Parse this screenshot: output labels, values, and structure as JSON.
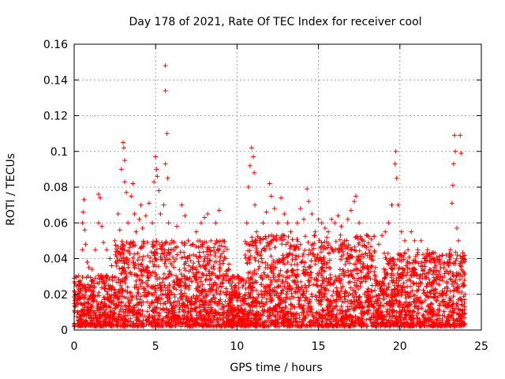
{
  "chart_data": {
    "type": "scatter",
    "title": "Day 178 of 2021, Rate Of TEC Index for receiver cool",
    "xlabel": "GPS time / hours",
    "ylabel": "ROTI / TECUs",
    "xlim": [
      0,
      25
    ],
    "ylim": [
      0,
      0.16
    ],
    "grid": true,
    "marker": "+",
    "color": "#ff0000",
    "x_ticks": [
      0,
      5,
      10,
      15,
      20,
      25
    ],
    "x_tick_labels": [
      "0",
      "5",
      "10",
      "15",
      "20",
      "25"
    ],
    "y_ticks": [
      0,
      0.02,
      0.04,
      0.06,
      0.08,
      0.1,
      0.12,
      0.14,
      0.16
    ],
    "y_tick_labels": [
      "0",
      "0.02",
      "0.04",
      "0.06",
      "0.08",
      "0.1",
      "0.12",
      "0.14",
      "0.16"
    ],
    "series": [
      {
        "name": "ROTI",
        "points": [
          [
            0.0,
            0.029
          ],
          [
            0.1,
            0.03
          ],
          [
            0.3,
            0.018
          ],
          [
            0.5,
            0.045
          ],
          [
            0.5,
            0.06
          ],
          [
            0.55,
            0.066
          ],
          [
            0.6,
            0.073
          ],
          [
            0.65,
            0.056
          ],
          [
            0.7,
            0.048
          ],
          [
            0.8,
            0.038
          ],
          [
            0.9,
            0.035
          ],
          [
            1.1,
            0.034
          ],
          [
            1.3,
            0.045
          ],
          [
            1.5,
            0.06
          ],
          [
            1.5,
            0.076
          ],
          [
            1.6,
            0.074
          ],
          [
            1.7,
            0.058
          ],
          [
            1.8,
            0.049
          ],
          [
            2.0,
            0.045
          ],
          [
            2.2,
            0.04
          ],
          [
            2.3,
            0.036
          ],
          [
            2.5,
            0.05
          ],
          [
            2.7,
            0.065
          ],
          [
            2.8,
            0.056
          ],
          [
            2.9,
            0.09
          ],
          [
            3.0,
            0.105
          ],
          [
            3.05,
            0.102
          ],
          [
            3.1,
            0.095
          ],
          [
            3.1,
            0.083
          ],
          [
            3.2,
            0.077
          ],
          [
            3.3,
            0.06
          ],
          [
            3.5,
            0.075
          ],
          [
            3.6,
            0.082
          ],
          [
            3.7,
            0.065
          ],
          [
            3.8,
            0.055
          ],
          [
            4.0,
            0.062
          ],
          [
            4.1,
            0.07
          ],
          [
            4.2,
            0.057
          ],
          [
            4.4,
            0.064
          ],
          [
            4.6,
            0.071
          ],
          [
            4.8,
            0.06
          ],
          [
            4.9,
            0.083
          ],
          [
            5.0,
            0.097
          ],
          [
            5.05,
            0.09
          ],
          [
            5.1,
            0.086
          ],
          [
            5.2,
            0.078
          ],
          [
            5.3,
            0.065
          ],
          [
            5.5,
            0.07
          ],
          [
            5.6,
            0.093
          ],
          [
            5.6,
            0.148
          ],
          [
            5.6,
            0.134
          ],
          [
            5.7,
            0.11
          ],
          [
            5.75,
            0.085
          ],
          [
            5.8,
            0.06
          ],
          [
            6.0,
            0.05
          ],
          [
            6.3,
            0.058
          ],
          [
            6.6,
            0.07
          ],
          [
            6.8,
            0.064
          ],
          [
            7.0,
            0.05
          ],
          [
            7.3,
            0.048
          ],
          [
            7.5,
            0.055
          ],
          [
            7.8,
            0.06
          ],
          [
            8.0,
            0.063
          ],
          [
            8.2,
            0.065
          ],
          [
            8.4,
            0.05
          ],
          [
            8.7,
            0.06
          ],
          [
            8.9,
            0.067
          ],
          [
            9.1,
            0.05
          ],
          [
            9.3,
            0.04
          ],
          [
            9.5,
            0.034
          ],
          [
            9.7,
            0.03
          ],
          [
            9.9,
            0.025
          ],
          [
            10.1,
            0.02
          ],
          [
            10.3,
            0.028
          ],
          [
            10.5,
            0.042
          ],
          [
            10.6,
            0.06
          ],
          [
            10.7,
            0.08
          ],
          [
            10.8,
            0.092
          ],
          [
            10.9,
            0.102
          ],
          [
            11.0,
            0.097
          ],
          [
            11.05,
            0.088
          ],
          [
            11.1,
            0.07
          ],
          [
            11.2,
            0.055
          ],
          [
            11.4,
            0.05
          ],
          [
            11.6,
            0.06
          ],
          [
            11.8,
            0.066
          ],
          [
            12.0,
            0.082
          ],
          [
            12.1,
            0.075
          ],
          [
            12.3,
            0.068
          ],
          [
            12.5,
            0.06
          ],
          [
            12.7,
            0.074
          ],
          [
            12.9,
            0.065
          ],
          [
            13.1,
            0.06
          ],
          [
            13.3,
            0.055
          ],
          [
            13.5,
            0.047
          ],
          [
            13.7,
            0.06
          ],
          [
            13.9,
            0.068
          ],
          [
            14.1,
            0.062
          ],
          [
            14.3,
            0.079
          ],
          [
            14.4,
            0.072
          ],
          [
            14.6,
            0.065
          ],
          [
            14.8,
            0.055
          ],
          [
            15.0,
            0.062
          ],
          [
            15.2,
            0.06
          ],
          [
            15.4,
            0.057
          ],
          [
            15.6,
            0.055
          ],
          [
            15.8,
            0.062
          ],
          [
            16.0,
            0.06
          ],
          [
            16.2,
            0.064
          ],
          [
            16.4,
            0.058
          ],
          [
            16.6,
            0.05
          ],
          [
            16.8,
            0.062
          ],
          [
            17.0,
            0.067
          ],
          [
            17.2,
            0.072
          ],
          [
            17.3,
            0.075
          ],
          [
            17.5,
            0.06
          ],
          [
            17.7,
            0.05
          ],
          [
            17.9,
            0.043
          ],
          [
            18.1,
            0.03
          ],
          [
            18.3,
            0.025
          ],
          [
            18.5,
            0.035
          ],
          [
            18.7,
            0.048
          ],
          [
            18.9,
            0.053
          ],
          [
            19.1,
            0.055
          ],
          [
            19.3,
            0.06
          ],
          [
            19.5,
            0.07
          ],
          [
            19.7,
            0.093
          ],
          [
            19.75,
            0.1
          ],
          [
            19.8,
            0.085
          ],
          [
            19.9,
            0.07
          ],
          [
            20.1,
            0.055
          ],
          [
            20.3,
            0.05
          ],
          [
            20.5,
            0.045
          ],
          [
            20.7,
            0.055
          ],
          [
            20.9,
            0.05
          ],
          [
            21.1,
            0.045
          ],
          [
            21.3,
            0.05
          ],
          [
            21.5,
            0.04
          ],
          [
            21.7,
            0.045
          ],
          [
            21.9,
            0.038
          ],
          [
            22.1,
            0.035
          ],
          [
            22.3,
            0.03
          ],
          [
            22.5,
            0.03
          ],
          [
            22.7,
            0.035
          ],
          [
            22.9,
            0.033
          ],
          [
            23.1,
            0.045
          ],
          [
            23.2,
            0.071
          ],
          [
            23.25,
            0.081
          ],
          [
            23.3,
            0.093
          ],
          [
            23.35,
            0.109
          ],
          [
            23.4,
            0.1
          ],
          [
            23.5,
            0.057
          ],
          [
            23.6,
            0.05
          ],
          [
            23.7,
            0.109
          ],
          [
            23.75,
            0.099
          ],
          [
            23.8,
            0.04
          ],
          [
            23.9,
            0.025
          ],
          [
            24.0,
            0.02
          ]
        ]
      }
    ]
  }
}
